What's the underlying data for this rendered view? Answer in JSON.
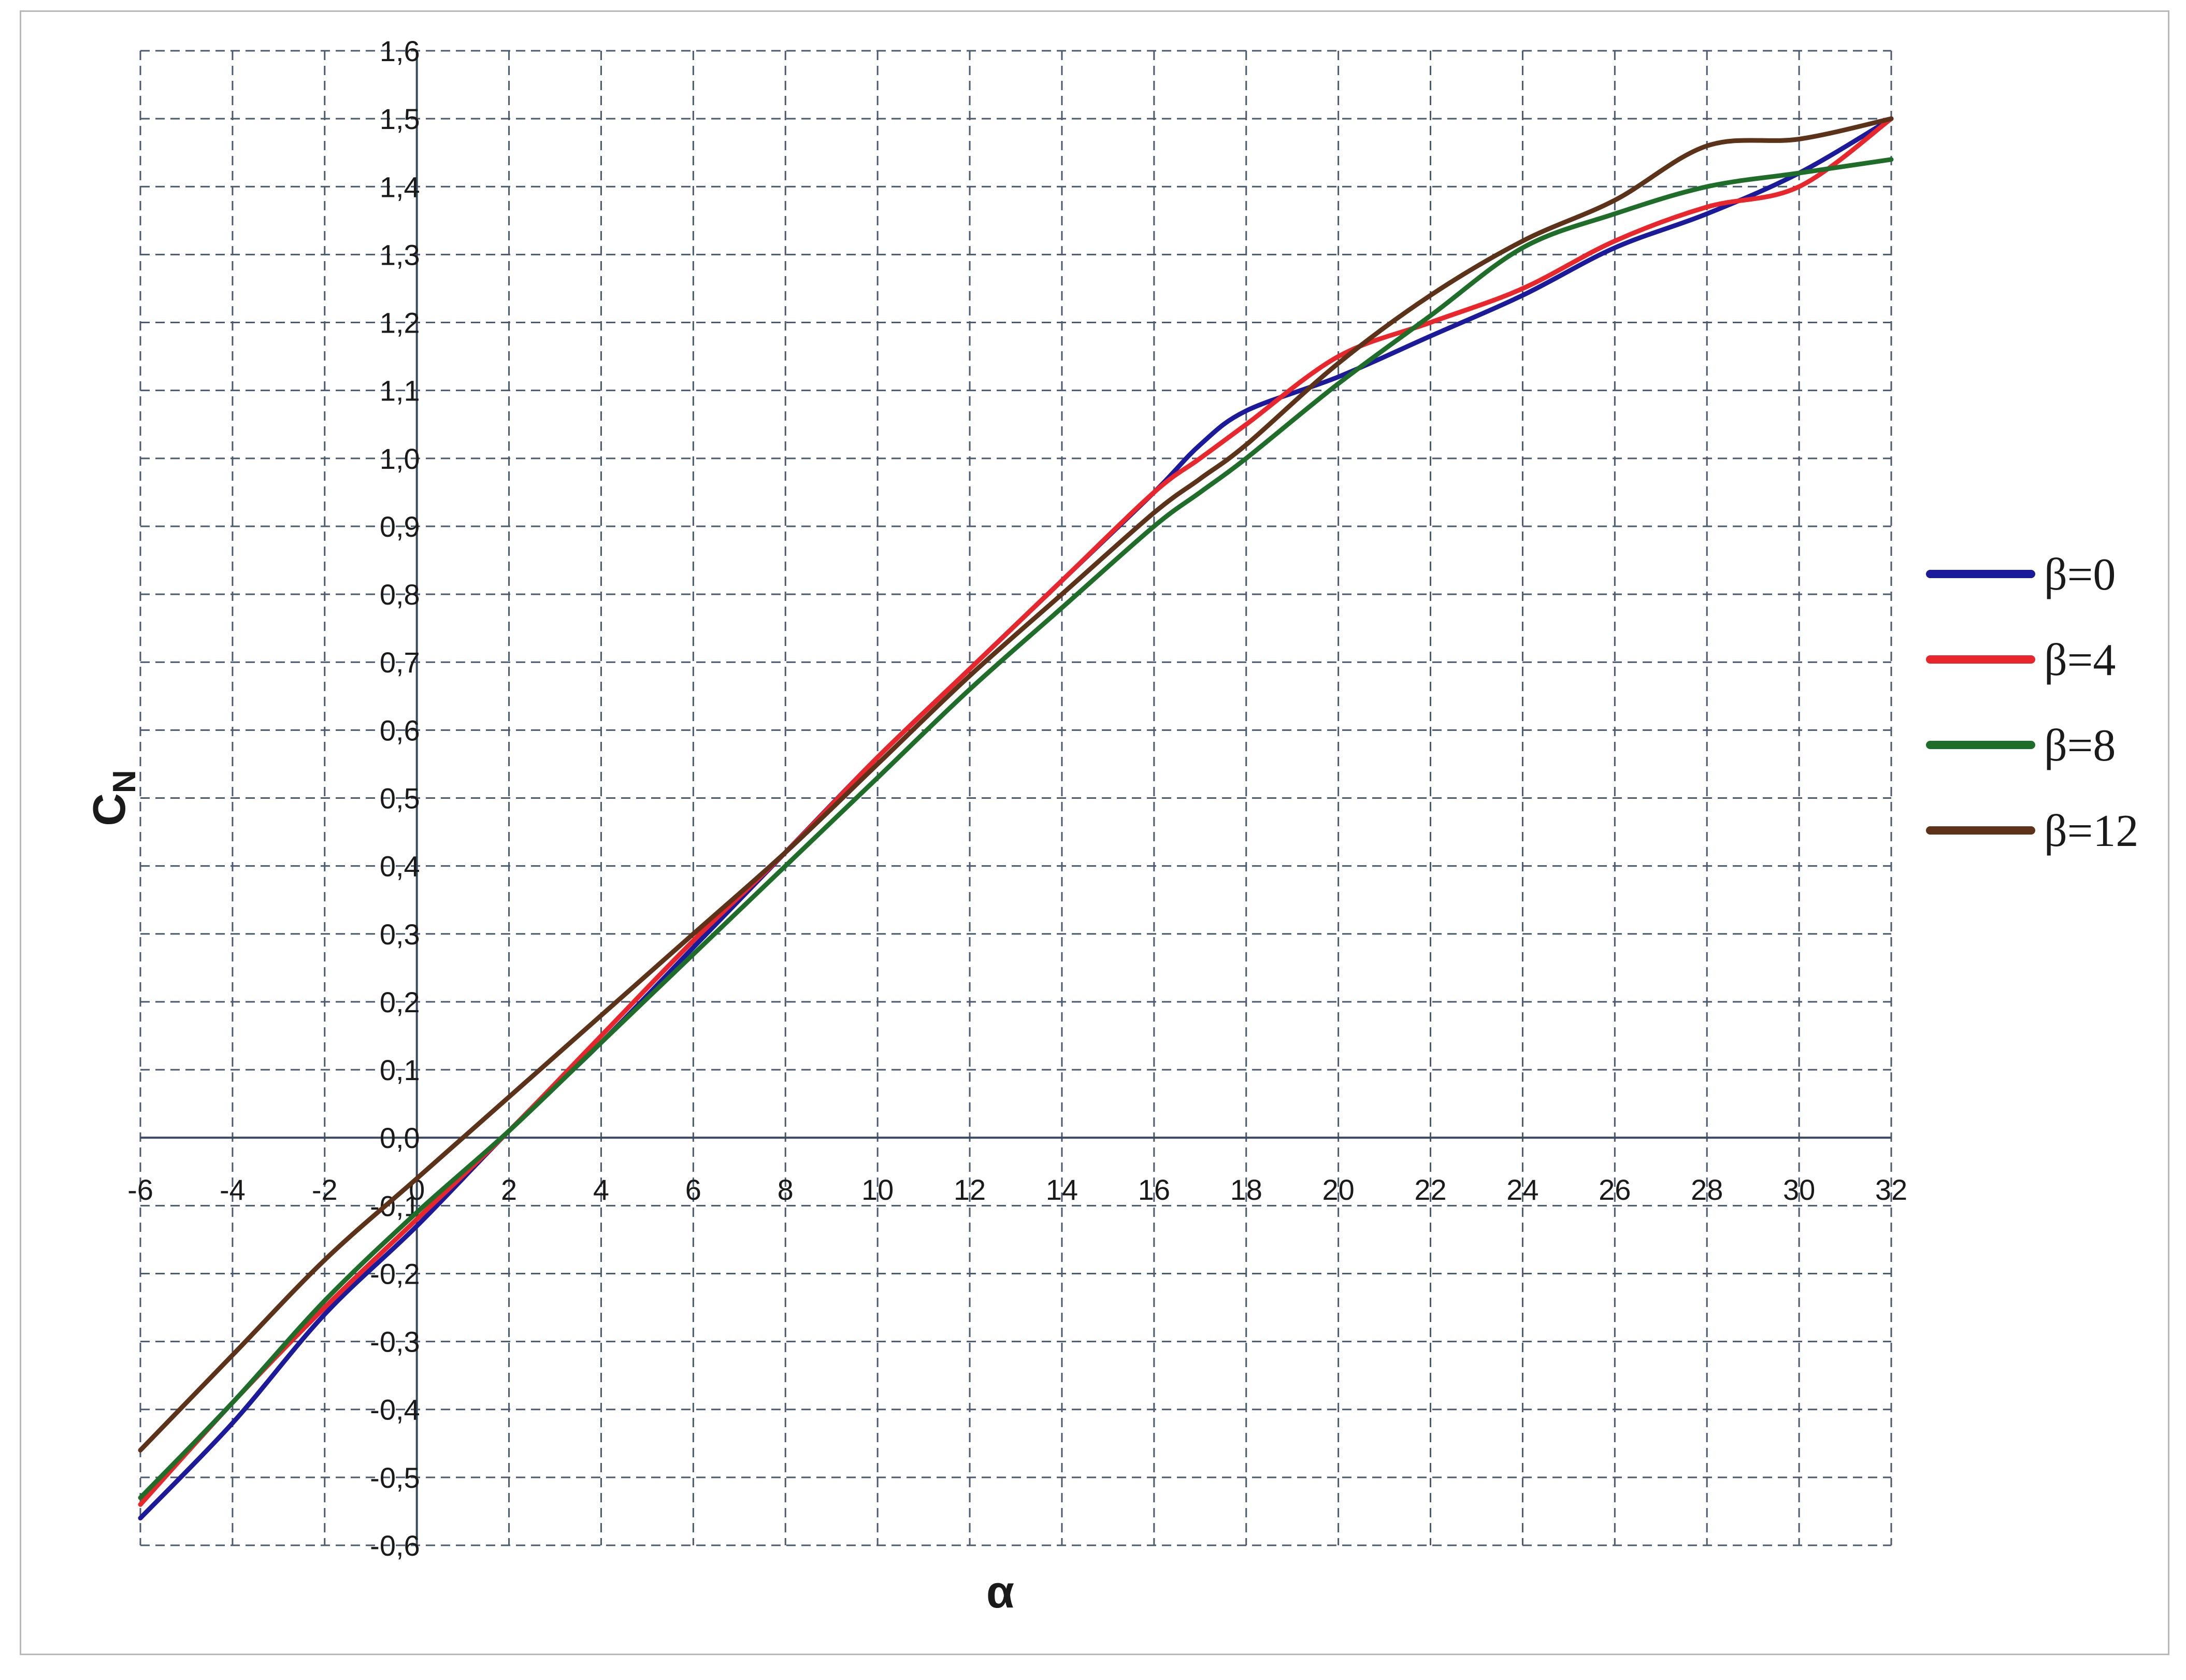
{
  "chart_data": {
    "type": "line",
    "title": "",
    "xlabel": "α",
    "ylabel": {
      "main": "C",
      "sub": "N"
    },
    "xlim": [
      -6,
      32
    ],
    "ylim": [
      -0.6,
      1.6
    ],
    "x_ticks": [
      -6,
      -4,
      -2,
      0,
      2,
      4,
      6,
      8,
      10,
      12,
      14,
      16,
      18,
      20,
      22,
      24,
      26,
      28,
      30,
      32
    ],
    "x_tick_labels": [
      "-6",
      "-4",
      "-2",
      "0",
      "2",
      "4",
      "6",
      "8",
      "10",
      "12",
      "14",
      "16",
      "18",
      "20",
      "22",
      "24",
      "26",
      "28",
      "30",
      "32"
    ],
    "y_ticks": [
      -0.6,
      -0.5,
      -0.4,
      -0.3,
      -0.2,
      -0.1,
      0.0,
      0.1,
      0.2,
      0.3,
      0.4,
      0.5,
      0.6,
      0.7,
      0.8,
      0.9,
      1.0,
      1.1,
      1.2,
      1.3,
      1.4,
      1.5,
      1.6
    ],
    "y_tick_labels": [
      "-0,6",
      "-0,5",
      "-0,4",
      "-0,3",
      "-0,2",
      "-0,1",
      "0,0",
      "0,1",
      "0,2",
      "0,3",
      "0,4",
      "0,5",
      "0,6",
      "0,7",
      "0,8",
      "0,9",
      "1,0",
      "1,1",
      "1,2",
      "1,3",
      "1,4",
      "1,5",
      "1,6"
    ],
    "grid": true,
    "grid_style": "dashed",
    "legend_position": "right",
    "x": [
      -6,
      -4,
      -2,
      0,
      2,
      4,
      6,
      8,
      10,
      12,
      14,
      16,
      17,
      18,
      20,
      22,
      24,
      26,
      28,
      30,
      32
    ],
    "series": [
      {
        "name": "β=0",
        "color": "#1a1a9a",
        "values": [
          -0.56,
          -0.42,
          -0.26,
          -0.13,
          0.01,
          0.14,
          0.28,
          0.42,
          0.56,
          0.69,
          0.82,
          0.95,
          1.02,
          1.07,
          1.12,
          1.18,
          1.24,
          1.31,
          1.36,
          1.42,
          1.5
        ]
      },
      {
        "name": "β=4",
        "color": "#e8262b",
        "values": [
          -0.54,
          -0.39,
          -0.25,
          -0.12,
          0.01,
          0.15,
          0.29,
          0.42,
          0.56,
          0.69,
          0.82,
          0.95,
          1.0,
          1.05,
          1.15,
          1.2,
          1.25,
          1.32,
          1.37,
          1.4,
          1.5
        ]
      },
      {
        "name": "β=8",
        "color": "#1e6e2a",
        "values": [
          -0.53,
          -0.39,
          -0.24,
          -0.11,
          0.01,
          0.14,
          0.27,
          0.4,
          0.53,
          0.66,
          0.78,
          0.9,
          0.95,
          1.0,
          1.11,
          1.21,
          1.31,
          1.36,
          1.4,
          1.42,
          1.44
        ]
      },
      {
        "name": "β=12",
        "color": "#5c3218",
        "values": [
          -0.46,
          -0.32,
          -0.18,
          -0.06,
          0.06,
          0.18,
          0.3,
          0.42,
          0.55,
          0.68,
          0.8,
          0.92,
          0.97,
          1.02,
          1.14,
          1.24,
          1.32,
          1.38,
          1.46,
          1.47,
          1.5
        ]
      }
    ]
  }
}
